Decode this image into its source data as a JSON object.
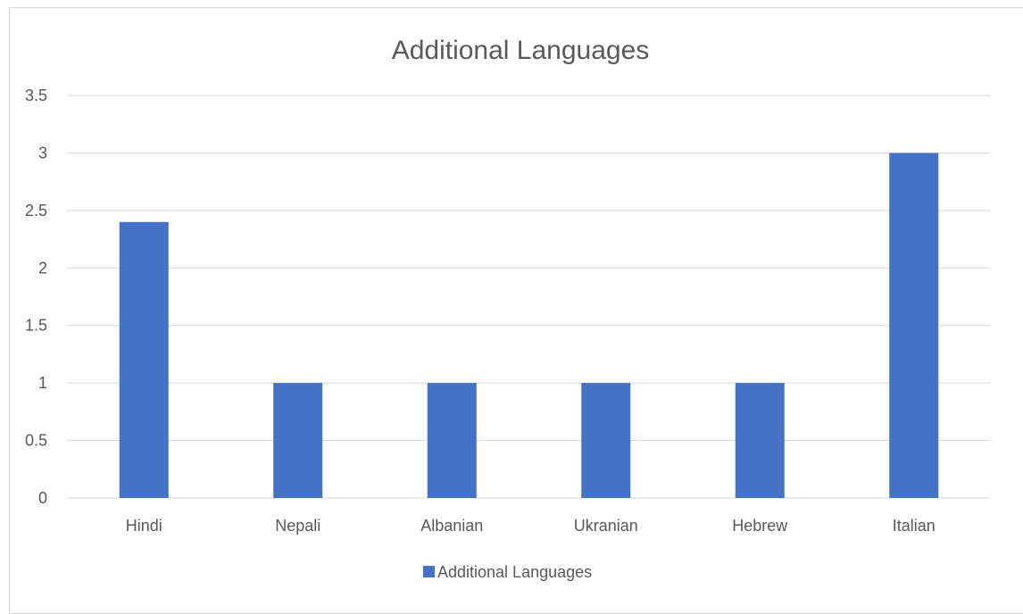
{
  "chart_data": {
    "type": "bar",
    "title": "Additional Languages",
    "xlabel": "",
    "ylabel": "",
    "categories": [
      "Hindi",
      "Nepali",
      "Albanian",
      "Ukranian",
      "Hebrew",
      "Italian"
    ],
    "series": [
      {
        "name": "Additional Languages",
        "values": [
          2.4,
          1,
          1,
          1,
          1,
          3
        ],
        "color": "#4472C4"
      }
    ],
    "ylim": [
      0,
      3.5
    ],
    "y_ticks": [
      "0",
      "0.5",
      "1",
      "1.5",
      "2",
      "2.5",
      "3",
      "3.5"
    ],
    "grid": true,
    "legend_position": "bottom"
  }
}
